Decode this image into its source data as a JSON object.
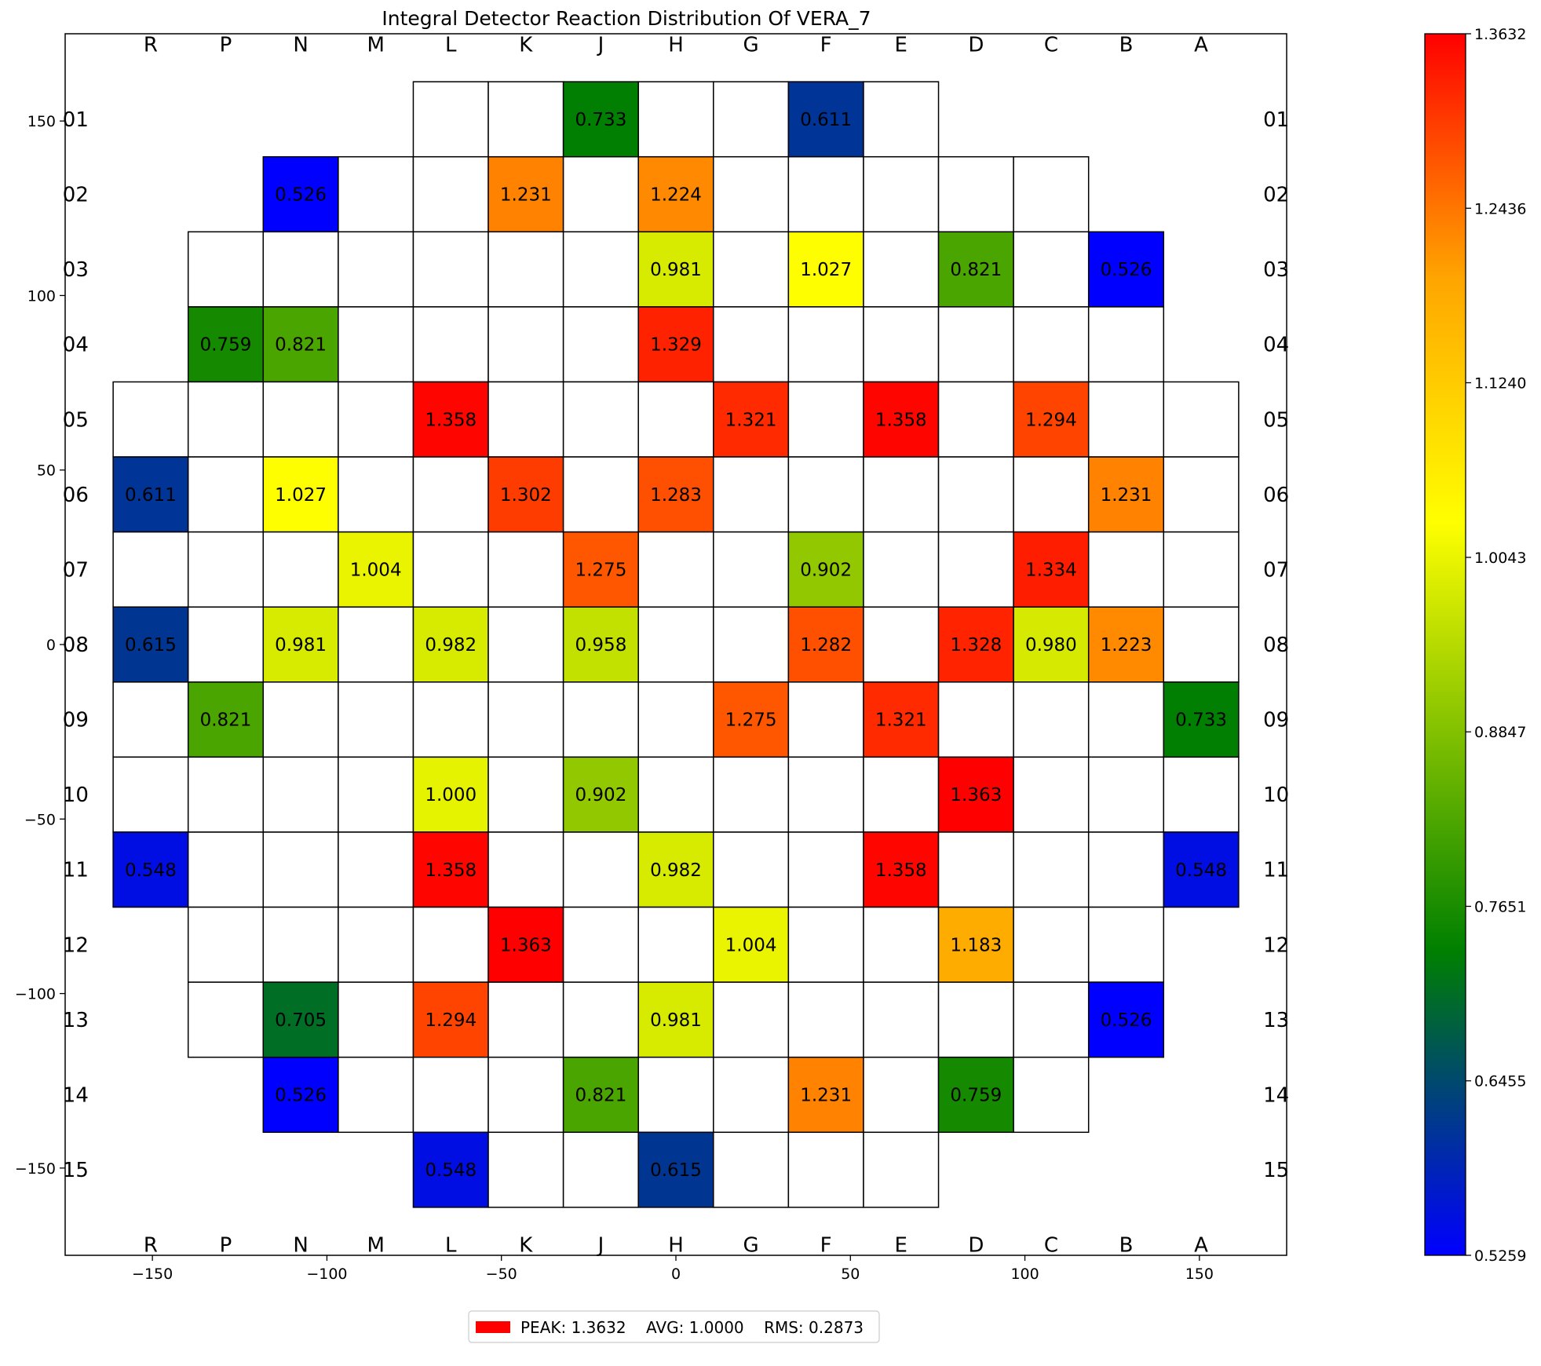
{
  "chart_data": {
    "type": "heatmap",
    "title": "Integral Detector Reaction Distribution Of VERA_7",
    "xlabel": "",
    "ylabel": "",
    "xlim": [
      -175,
      175
    ],
    "ylim": [
      -175,
      175
    ],
    "x_ticks": [
      -150,
      -100,
      -50,
      0,
      50,
      100,
      150
    ],
    "y_ticks": [
      150,
      100,
      50,
      0,
      -50,
      -100,
      -150
    ],
    "x_tick_labels": [
      "−150",
      "−100",
      "−50",
      "0",
      "50",
      "100",
      "150"
    ],
    "y_tick_labels": [
      "150",
      "100",
      "50",
      "0",
      "−50",
      "−100",
      "−150"
    ],
    "assembly_pitch": 21.5,
    "columns": [
      "R",
      "P",
      "N",
      "M",
      "L",
      "K",
      "J",
      "H",
      "G",
      "F",
      "E",
      "D",
      "C",
      "B",
      "A"
    ],
    "rows": [
      "01",
      "02",
      "03",
      "04",
      "05",
      "06",
      "07",
      "08",
      "09",
      "10",
      "11",
      "12",
      "13",
      "14",
      "15"
    ],
    "row_col_ranges": [
      [
        4,
        10
      ],
      [
        2,
        12
      ],
      [
        1,
        13
      ],
      [
        1,
        13
      ],
      [
        0,
        14
      ],
      [
        0,
        14
      ],
      [
        0,
        14
      ],
      [
        0,
        14
      ],
      [
        0,
        14
      ],
      [
        0,
        14
      ],
      [
        0,
        14
      ],
      [
        1,
        13
      ],
      [
        1,
        13
      ],
      [
        2,
        12
      ],
      [
        4,
        10
      ]
    ],
    "cells": [
      {
        "row": "01",
        "col": "J",
        "value": 0.733
      },
      {
        "row": "01",
        "col": "F",
        "value": 0.611
      },
      {
        "row": "02",
        "col": "N",
        "value": 0.526
      },
      {
        "row": "02",
        "col": "K",
        "value": 1.231
      },
      {
        "row": "02",
        "col": "H",
        "value": 1.224
      },
      {
        "row": "03",
        "col": "H",
        "value": 0.981
      },
      {
        "row": "03",
        "col": "F",
        "value": 1.027
      },
      {
        "row": "03",
        "col": "D",
        "value": 0.821
      },
      {
        "row": "03",
        "col": "B",
        "value": 0.526
      },
      {
        "row": "04",
        "col": "P",
        "value": 0.759
      },
      {
        "row": "04",
        "col": "N",
        "value": 0.821
      },
      {
        "row": "04",
        "col": "H",
        "value": 1.329
      },
      {
        "row": "05",
        "col": "L",
        "value": 1.358
      },
      {
        "row": "05",
        "col": "G",
        "value": 1.321
      },
      {
        "row": "05",
        "col": "E",
        "value": 1.358
      },
      {
        "row": "05",
        "col": "C",
        "value": 1.294
      },
      {
        "row": "06",
        "col": "R",
        "value": 0.611
      },
      {
        "row": "06",
        "col": "N",
        "value": 1.027
      },
      {
        "row": "06",
        "col": "K",
        "value": 1.302
      },
      {
        "row": "06",
        "col": "H",
        "value": 1.283
      },
      {
        "row": "06",
        "col": "B",
        "value": 1.231
      },
      {
        "row": "07",
        "col": "M",
        "value": 1.004
      },
      {
        "row": "07",
        "col": "J",
        "value": 1.275
      },
      {
        "row": "07",
        "col": "F",
        "value": 0.902
      },
      {
        "row": "07",
        "col": "C",
        "value": 1.334
      },
      {
        "row": "08",
        "col": "R",
        "value": 0.615
      },
      {
        "row": "08",
        "col": "N",
        "value": 0.981
      },
      {
        "row": "08",
        "col": "L",
        "value": 0.982
      },
      {
        "row": "08",
        "col": "J",
        "value": 0.958
      },
      {
        "row": "08",
        "col": "F",
        "value": 1.282
      },
      {
        "row": "08",
        "col": "D",
        "value": 1.328
      },
      {
        "row": "08",
        "col": "C",
        "value": 0.98
      },
      {
        "row": "08",
        "col": "B",
        "value": 1.223
      },
      {
        "row": "09",
        "col": "P",
        "value": 0.821
      },
      {
        "row": "09",
        "col": "G",
        "value": 1.275
      },
      {
        "row": "09",
        "col": "E",
        "value": 1.321
      },
      {
        "row": "09",
        "col": "A",
        "value": 0.733
      },
      {
        "row": "10",
        "col": "L",
        "value": 1.0
      },
      {
        "row": "10",
        "col": "J",
        "value": 0.902
      },
      {
        "row": "10",
        "col": "D",
        "value": 1.363
      },
      {
        "row": "11",
        "col": "R",
        "value": 0.548
      },
      {
        "row": "11",
        "col": "L",
        "value": 1.358
      },
      {
        "row": "11",
        "col": "H",
        "value": 0.982
      },
      {
        "row": "11",
        "col": "E",
        "value": 1.358
      },
      {
        "row": "11",
        "col": "A",
        "value": 0.548
      },
      {
        "row": "12",
        "col": "K",
        "value": 1.363
      },
      {
        "row": "12",
        "col": "G",
        "value": 1.004
      },
      {
        "row": "12",
        "col": "D",
        "value": 1.183
      },
      {
        "row": "13",
        "col": "N",
        "value": 0.705
      },
      {
        "row": "13",
        "col": "L",
        "value": 1.294
      },
      {
        "row": "13",
        "col": "H",
        "value": 0.981
      },
      {
        "row": "13",
        "col": "B",
        "value": 0.526
      },
      {
        "row": "14",
        "col": "N",
        "value": 0.526
      },
      {
        "row": "14",
        "col": "J",
        "value": 0.821
      },
      {
        "row": "14",
        "col": "F",
        "value": 1.231
      },
      {
        "row": "14",
        "col": "D",
        "value": 0.759
      },
      {
        "row": "15",
        "col": "L",
        "value": 0.548
      },
      {
        "row": "15",
        "col": "H",
        "value": 0.615
      }
    ],
    "colorbar": {
      "min": 0.5259,
      "max": 1.3632,
      "tick_values": [
        0.5259,
        0.6455,
        0.7651,
        0.8847,
        1.0043,
        1.124,
        1.2436,
        1.3632
      ],
      "tick_labels": [
        "0.5259",
        "0.6455",
        "0.7651",
        "0.8847",
        "1.0043",
        "1.1240",
        "1.2436",
        "1.3632"
      ],
      "color_stops": [
        {
          "pos": 0.0,
          "color": "#0000ff"
        },
        {
          "pos": 0.25,
          "color": "#008000"
        },
        {
          "pos": 0.6,
          "color": "#ffff00"
        },
        {
          "pos": 0.8,
          "color": "#ffa500"
        },
        {
          "pos": 1.0,
          "color": "#ff0000"
        }
      ]
    },
    "legend": {
      "position": "bottom-center",
      "swatch_color": "#ff0000",
      "text": "PEAK: 1.3632    AVG: 1.0000    RMS: 0.2873"
    }
  }
}
